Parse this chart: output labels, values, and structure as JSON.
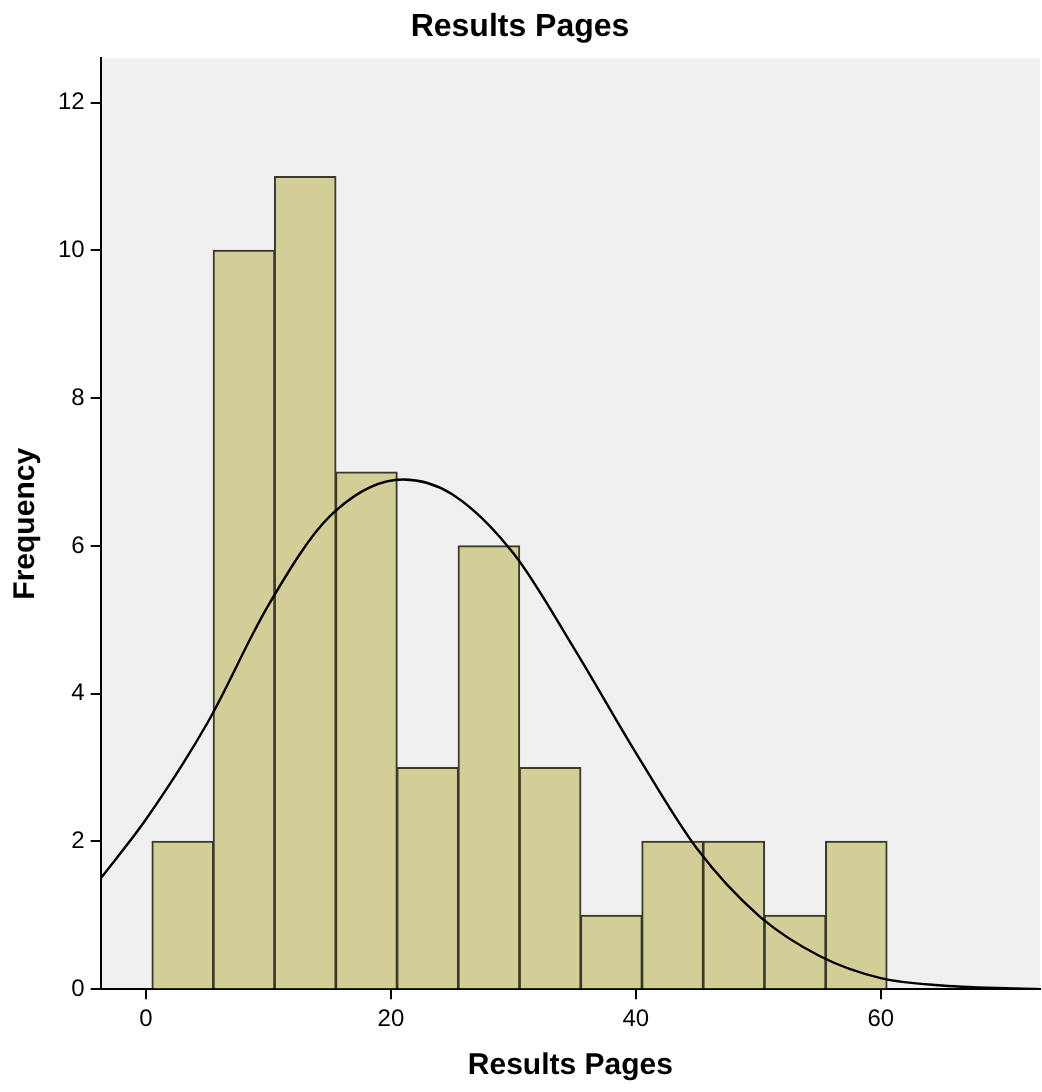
{
  "chart_data": {
    "type": "histogram",
    "title": "Results Pages",
    "xlabel": "Results Pages",
    "ylabel": "Frequency",
    "bins": [
      0.5,
      5.5,
      10.5,
      15.5,
      20.5,
      25.5,
      30.5,
      35.5,
      40.5,
      45.5,
      50.5,
      55.5,
      60.5
    ],
    "values": [
      2,
      10,
      11,
      7,
      3,
      6,
      3,
      1,
      2,
      2,
      1,
      2
    ],
    "color": "#d3ce97",
    "series": [
      {
        "type": "line",
        "color": "#000000",
        "x": [
          -3.7,
          0,
          5,
          10,
          15,
          21,
          25,
          30,
          35,
          40,
          45,
          50,
          55,
          60,
          65,
          73
        ],
        "values": [
          1.5,
          2.3,
          3.6,
          5.2,
          6.4,
          6.9,
          6.7,
          5.9,
          4.6,
          3.2,
          1.9,
          1.0,
          0.45,
          0.15,
          0.05,
          0
        ]
      }
    ],
    "xlim": [
      -3.7,
      73
    ],
    "xticks": [
      0,
      20,
      40,
      60
    ],
    "ylim": [
      0,
      12.6
    ],
    "yticks": [
      0,
      2,
      4,
      6,
      8,
      10,
      12
    ],
    "grid": false,
    "legend": false,
    "marker": "none",
    "line_style": "solid"
  }
}
